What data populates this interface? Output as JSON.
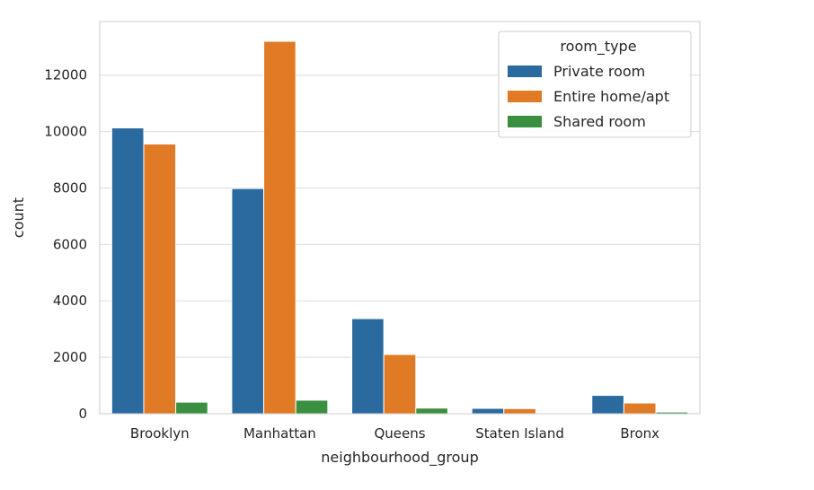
{
  "chart_data": {
    "type": "bar",
    "title": "",
    "xlabel": "neighbourhood_group",
    "ylabel": "count",
    "categories": [
      "Brooklyn",
      "Manhattan",
      "Queens",
      "Staten Island",
      "Bronx"
    ],
    "series": [
      {
        "name": "Private room",
        "color": "#2b6a9e",
        "values": [
          10130,
          7980,
          3370,
          190,
          650
        ]
      },
      {
        "name": "Entire home/apt",
        "color": "#e07a25",
        "values": [
          9560,
          13200,
          2100,
          180,
          380
        ]
      },
      {
        "name": "Shared room",
        "color": "#3a9040",
        "values": [
          410,
          480,
          200,
          10,
          60
        ]
      }
    ],
    "ylim": [
      0,
      13900
    ],
    "yticks": [
      0,
      2000,
      4000,
      6000,
      8000,
      10000,
      12000
    ],
    "grid": true,
    "legend": {
      "title": "room_type",
      "placement": "top-right"
    }
  }
}
